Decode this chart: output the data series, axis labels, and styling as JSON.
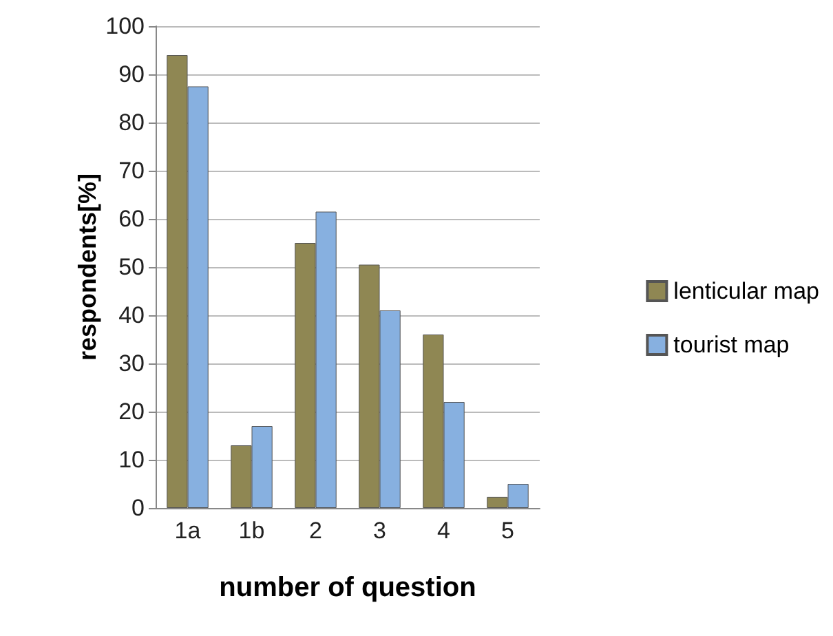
{
  "chart_data": {
    "type": "bar",
    "xlabel": "number of question",
    "ylabel": "respondents[%]",
    "categories": [
      "1a",
      "1b",
      "2",
      "3",
      "4",
      "5"
    ],
    "series": [
      {
        "name": "lenticular map",
        "color": "#8f8753",
        "values": [
          94,
          13,
          55,
          50.5,
          36,
          2.3
        ]
      },
      {
        "name": "tourist map",
        "color": "#87b0e0",
        "values": [
          87.5,
          17,
          61.5,
          41,
          22,
          5
        ]
      }
    ],
    "ylim": [
      0,
      100
    ],
    "yticks": [
      0,
      10,
      20,
      30,
      40,
      50,
      60,
      70,
      80,
      90,
      100
    ],
    "grid": "y",
    "legend": "right"
  }
}
